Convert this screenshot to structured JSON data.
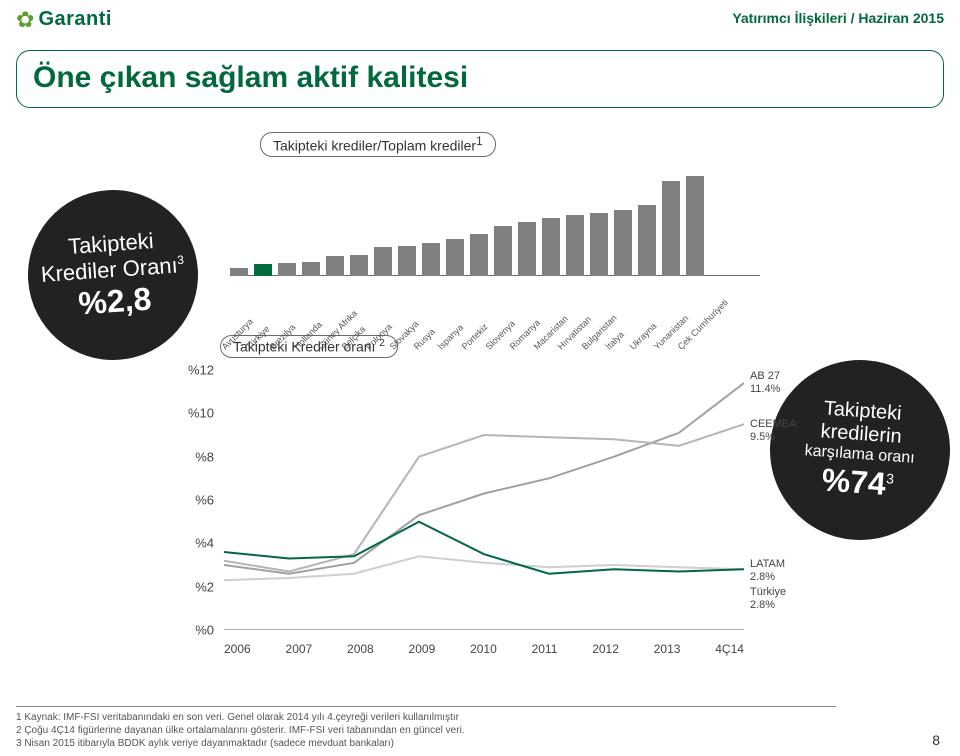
{
  "header": {
    "right": "Yatırımcı İlişkileri / Haziran 2015"
  },
  "logo": {
    "text": "Garanti"
  },
  "title": "Öne çıkan sağlam aktif kalitesi",
  "chart1": {
    "label": "Takipteki krediler/Toplam krediler",
    "label_sup": "1",
    "categories": [
      "Avusturya",
      "Türkiye",
      "Brezilya",
      "Hollanda",
      "Güney Afrika",
      "Belçika",
      "Polonya",
      "Slovakya",
      "Rusya",
      "İspanya",
      "Portekiz",
      "Slovenya",
      "Romanya",
      "Macaristan",
      "Hırvatistan",
      "Bulgaristan",
      "İtalya",
      "Ukrayna",
      "Yunanistan",
      "Çek Cumhuriyeti"
    ],
    "values": [
      6,
      9,
      10,
      11,
      15,
      16,
      22,
      23,
      25,
      28,
      32,
      38,
      41,
      44,
      46,
      48,
      50,
      54,
      72,
      76
    ],
    "highlight_index": 1,
    "bar_color": "#808080",
    "highlight_color": "#00693e"
  },
  "chart2": {
    "label": "Takipteki Krediler oranı ",
    "label_sup": "2",
    "x_labels": [
      "2006",
      "2007",
      "2008",
      "2009",
      "2010",
      "2011",
      "2012",
      "2013",
      "4Ç14"
    ],
    "y_ticks": [
      "%12",
      "%10",
      "%8",
      "%6",
      "%4",
      "%2",
      "%0"
    ],
    "y_positions": [
      0.0,
      0.167,
      0.333,
      0.5,
      0.667,
      0.833,
      1.0
    ],
    "ylim": [
      0,
      12
    ],
    "series": [
      {
        "name": "ab27",
        "label": "AB 27",
        "value_label": "11.4%",
        "color": "#a0a0a0",
        "width": 2,
        "values": [
          3.0,
          2.6,
          3.1,
          5.3,
          6.3,
          7.0,
          8.0,
          9.1,
          11.4
        ]
      },
      {
        "name": "ceemea",
        "label": "CEEMEA",
        "value_label": "9.5%",
        "color": "#b5b5b5",
        "width": 2,
        "values": [
          3.2,
          2.7,
          3.5,
          8.0,
          9.0,
          8.9,
          8.8,
          8.5,
          9.5
        ]
      },
      {
        "name": "latam",
        "label": "LATAM",
        "value_label": "2.8%",
        "color": "#cfcfcf",
        "width": 2,
        "values": [
          2.3,
          2.4,
          2.6,
          3.4,
          3.1,
          2.9,
          3.0,
          2.9,
          2.8
        ]
      },
      {
        "name": "turkiye",
        "label": "Türkiye",
        "value_label": "2.8%",
        "color": "#00693e",
        "width": 2,
        "values": [
          3.6,
          3.3,
          3.4,
          5.0,
          3.5,
          2.6,
          2.8,
          2.7,
          2.8
        ]
      }
    ]
  },
  "badge1": {
    "l1": "Takipteki",
    "l2": "Krediler Oranı",
    "sup": "3",
    "big": "%2,8"
  },
  "badge2": {
    "l1": "Takipteki",
    "l2": "kredilerin",
    "l3": "karşılama oranı",
    "big": "%74",
    "sup": "3"
  },
  "footnotes": [
    "1 Kaynak: IMF-FSI veritabanındaki en son veri. Genel olarak 2014 yılı 4.çeyreği verileri kullanılmıştır",
    "2 Çoğu 4Ç14 figürlerine dayanan ülke ortalamalarını gösterir. IMF-FSI veri tabanından en güncel veri.",
    "3 Nisan 2015 itibarıyla BDDK aylık veriye dayanmaktadır (sadece mevduat bankaları)"
  ],
  "page_number": "8"
}
